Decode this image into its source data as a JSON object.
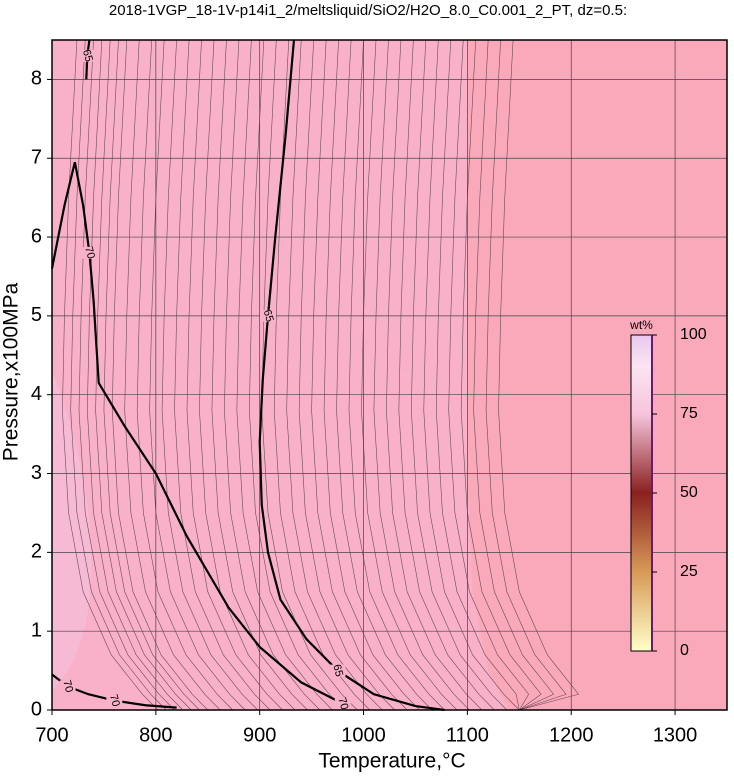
{
  "chart_data": {
    "type": "contour",
    "title": "2018-1VGP_18-1V-p14i1_2/meltsliquid/SiO2/H2O_8.0_C0.001_2_PT, dz=0.5:",
    "x_label": "Temperature,°C",
    "y_label": "Pressure,x100MPa",
    "xlim": [
      700,
      1350
    ],
    "ylim": [
      0,
      8.5
    ],
    "xticks": [
      700,
      800,
      900,
      1000,
      1100,
      1200,
      1300
    ],
    "yticks": [
      0,
      1,
      2,
      3,
      4,
      5,
      6,
      7,
      8
    ],
    "grid": true,
    "contours": [
      {
        "level": 70,
        "x": [
          700,
          712,
          722,
          730,
          736,
          740,
          745,
          770,
          800,
          830,
          870,
          900,
          940,
          980,
          987
        ],
        "y": [
          5.6,
          6.4,
          6.95,
          6.4,
          5.8,
          5.2,
          4.15,
          3.6,
          3.0,
          2.2,
          1.3,
          0.8,
          0.35,
          0.08,
          0
        ]
      },
      {
        "level": 65,
        "x": [
          933,
          925,
          915,
          908,
          903,
          900,
          902,
          908,
          920,
          945,
          975,
          1010,
          1050,
          1078
        ],
        "y": [
          8.5,
          7.3,
          6.0,
          5.0,
          4.2,
          3.4,
          2.6,
          2.0,
          1.4,
          0.9,
          0.5,
          0.2,
          0.05,
          0
        ]
      },
      {
        "level": 65,
        "x": [
          736,
          734,
          733
        ],
        "y": [
          8.5,
          8.3,
          8.0
        ]
      },
      {
        "level": 70,
        "x": [
          700,
          715,
          735,
          760,
          790,
          820
        ],
        "y": [
          0.45,
          0.3,
          0.2,
          0.12,
          0.06,
          0.03
        ]
      }
    ],
    "colorbar": {
      "label": "wt%",
      "lim": [
        0,
        100
      ],
      "ticks": [
        0,
        25,
        50,
        75,
        100
      ]
    }
  }
}
